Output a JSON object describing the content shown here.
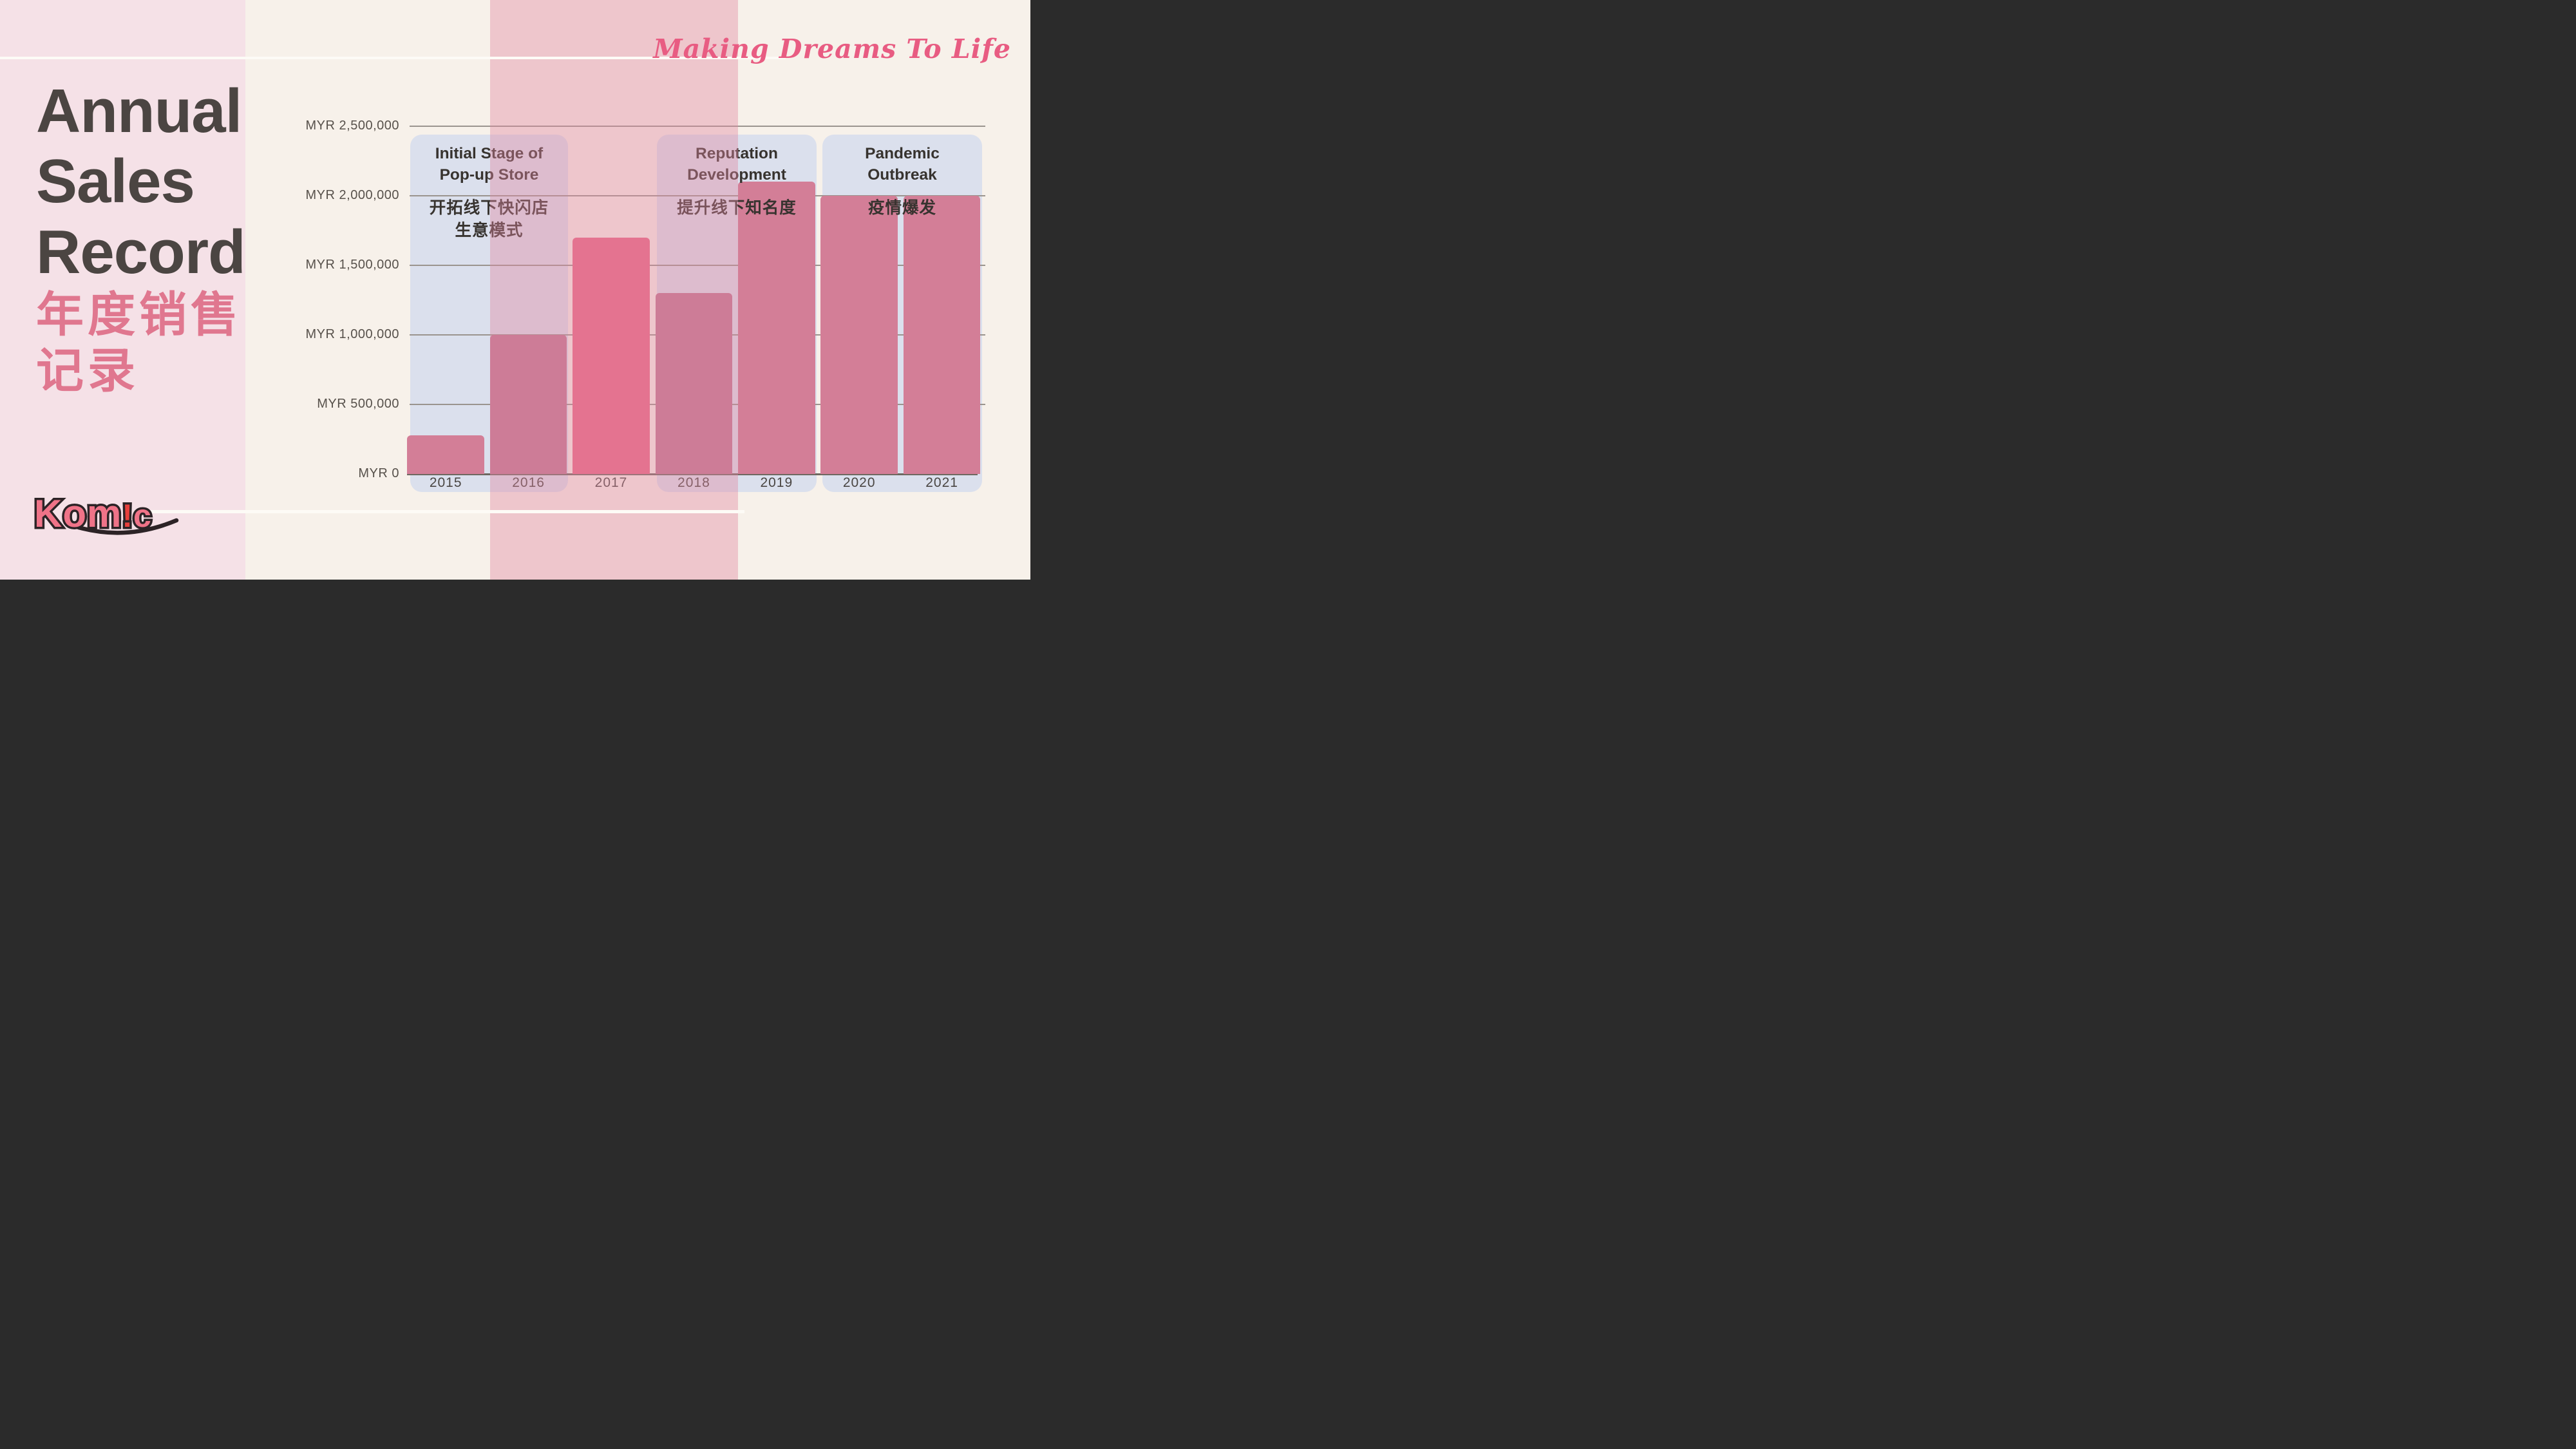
{
  "page": {
    "background": "#f7f1ea",
    "left_panel_color": "#f5e1e7",
    "band_color": "rgba(226,136,161,0.40)",
    "divider_color": "#fdfbf6"
  },
  "tagline": "Making Dreams To Life",
  "title": {
    "lines": [
      "Annual",
      "Sales",
      "Record"
    ]
  },
  "subtitle": {
    "lines": [
      "年度销售",
      "记录"
    ]
  },
  "logo": {
    "part1": "Kom",
    "bang": "!",
    "part2": "c"
  },
  "chart_data": {
    "type": "bar",
    "title": "Annual Sales Record",
    "currency": "MYR",
    "categories": [
      "2015",
      "2016",
      "2017",
      "2018",
      "2019",
      "2020",
      "2021"
    ],
    "values": [
      280000,
      1000000,
      1700000,
      1300000,
      2100000,
      2000000,
      2000000
    ],
    "ylim": [
      0,
      2500000
    ],
    "grid": true,
    "legend": false,
    "y_ticks": [
      {
        "value": 2500000,
        "label": "MYR 2,500,000"
      },
      {
        "value": 2000000,
        "label": "MYR 2,000,000"
      },
      {
        "value": 1500000,
        "label": "MYR 1,500,000"
      },
      {
        "value": 1000000,
        "label": "MYR 1,000,000"
      },
      {
        "value": 500000,
        "label": "MYR 500,000"
      },
      {
        "value": 0,
        "label": "MYR 0"
      }
    ],
    "annotations": [
      {
        "title_lines": [
          "Initial Stage of",
          "Pop-up Store"
        ],
        "subtitle_lines": [
          "开拓线下快闪店",
          "生意模式"
        ],
        "years": [
          "2015",
          "2016"
        ]
      },
      {
        "title_lines": [
          "Reputation",
          "Development"
        ],
        "subtitle_lines": [
          "提升线下知名度"
        ],
        "years": [
          "2018",
          "2019"
        ]
      },
      {
        "title_lines": [
          "Pandemic",
          "Outbreak"
        ],
        "subtitle_lines": [
          "疫情爆发"
        ],
        "years": [
          "2020",
          "2021"
        ]
      }
    ],
    "colors": {
      "bar_plain": "#d37e97",
      "bar_under_band": "#c07691",
      "bar_highlight": "#e76685",
      "annotation_box": "#dbe0ed",
      "gridline": "#9a948e",
      "axisline": "#6e6861",
      "tick_text": "#57514b",
      "annotation_text": "#37332f"
    }
  }
}
